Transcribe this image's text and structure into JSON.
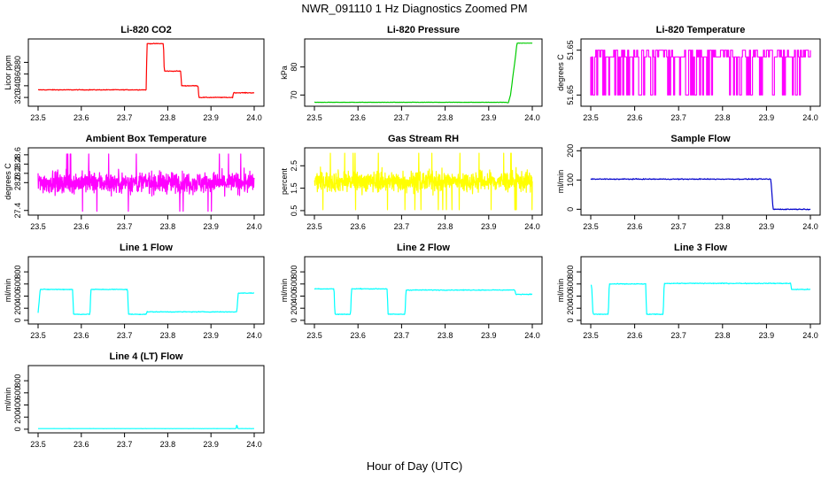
{
  "figure": {
    "title": "NWR_091110  1 Hz Diagnostics Zoomed PM",
    "xlabel": "Hour of Day (UTC)"
  },
  "chart_data": [
    {
      "type": "line",
      "title": "Li-820 CO2",
      "ylabel": "Licor ppm",
      "color": "#ff0000",
      "xlim": [
        23.5,
        24.0
      ],
      "ylim": [
        305,
        420
      ],
      "xticks": [
        "23.5",
        "23.6",
        "23.7",
        "23.8",
        "23.9",
        "24.0"
      ],
      "yticks": [
        {
          "v": 320,
          "label": "320"
        },
        {
          "v": 340,
          "label": "340"
        },
        {
          "v": 360,
          "label": "360"
        },
        {
          "v": 380,
          "label": "380"
        }
      ],
      "noise": 0.6,
      "x": [
        23.5,
        23.75,
        23.752,
        23.79,
        23.792,
        23.83,
        23.832,
        23.87,
        23.872,
        23.95,
        23.952,
        24.0
      ],
      "y": [
        333,
        333,
        412,
        412,
        365,
        365,
        340,
        340,
        320,
        320,
        328,
        328
      ]
    },
    {
      "type": "line",
      "title": "Li-820 Pressure",
      "ylabel": "kPa",
      "color": "#00cc00",
      "xlim": [
        23.5,
        24.0
      ],
      "ylim": [
        66,
        90
      ],
      "xticks": [
        "23.5",
        "23.6",
        "23.7",
        "23.8",
        "23.9",
        "24.0"
      ],
      "yticks": [
        {
          "v": 70,
          "label": "70"
        },
        {
          "v": 80,
          "label": "80"
        }
      ],
      "noise": 0.05,
      "x": [
        23.5,
        23.94,
        23.945,
        23.95,
        23.955,
        23.96,
        23.965,
        24.0
      ],
      "y": [
        67.4,
        67.4,
        67.2,
        70,
        76,
        82,
        88.5,
        88.5
      ]
    },
    {
      "type": "step-noise",
      "title": "Li-820 Temperature",
      "ylabel": "degrees C",
      "color": "#ff00ff",
      "xlim": [
        23.5,
        24.0
      ],
      "ylim": [
        51.6495,
        51.6525
      ],
      "xticks": [
        "23.5",
        "23.6",
        "23.7",
        "23.8",
        "23.9",
        "24.0"
      ],
      "yticks": [
        {
          "v": 51.65,
          "label": "51.65"
        },
        {
          "v": 51.652,
          "label": "51.65"
        }
      ],
      "levels": [
        51.65,
        51.652,
        51.6517
      ],
      "x": [
        23.5,
        24.0
      ],
      "y": [
        51.6517,
        51.6517
      ]
    },
    {
      "type": "noise",
      "title": "Ambient Box Temperature",
      "ylabel": "degrees C",
      "color": "#ff00ff",
      "xlim": [
        23.5,
        24.0
      ],
      "ylim": [
        27.3,
        28.75
      ],
      "xticks": [
        "23.5",
        "23.6",
        "23.7",
        "23.8",
        "23.9",
        "24.0"
      ],
      "yticks": [
        {
          "v": 27.4,
          "label": "27.4"
        },
        {
          "v": 28.0,
          "label": "28.0"
        },
        {
          "v": 28.2,
          "label": "28.2"
        },
        {
          "v": 28.4,
          "label": "28.4"
        },
        {
          "v": 28.6,
          "label": "28.6"
        }
      ],
      "mean": 28.0,
      "spread": 0.22,
      "x": [
        23.5,
        24.0
      ],
      "y": [
        28.0,
        28.0
      ]
    },
    {
      "type": "noise",
      "title": "Gas Stream RH",
      "ylabel": "percent",
      "color": "#ffff00",
      "xlim": [
        23.5,
        24.0
      ],
      "ylim": [
        0.3,
        3.3
      ],
      "xticks": [
        "23.5",
        "23.6",
        "23.7",
        "23.8",
        "23.9",
        "24.0"
      ],
      "yticks": [
        {
          "v": 0.5,
          "label": "0.5"
        },
        {
          "v": 1.5,
          "label": "1.5"
        },
        {
          "v": 2.5,
          "label": "2.5"
        }
      ],
      "mean": 1.8,
      "spread": 0.45,
      "x": [
        23.5,
        24.0
      ],
      "y": [
        1.8,
        1.8
      ]
    },
    {
      "type": "line",
      "title": "Sample Flow",
      "ylabel": "ml/min",
      "color": "#0000cc",
      "xlim": [
        23.5,
        24.0
      ],
      "ylim": [
        -20,
        210
      ],
      "xticks": [
        "23.5",
        "23.6",
        "23.7",
        "23.8",
        "23.9",
        "24.0"
      ],
      "yticks": [
        {
          "v": 0,
          "label": "0"
        },
        {
          "v": 100,
          "label": "100"
        },
        {
          "v": 200,
          "label": "200"
        }
      ],
      "noise": 1.5,
      "x": [
        23.5,
        23.91,
        23.915,
        24.0
      ],
      "y": [
        103,
        103,
        0,
        0
      ]
    },
    {
      "type": "line",
      "title": "Line 1 Flow",
      "ylabel": "ml/min",
      "color": "#00ffff",
      "xlim": [
        23.5,
        24.0
      ],
      "ylim": [
        -60,
        1050
      ],
      "xticks": [
        "23.5",
        "23.6",
        "23.7",
        "23.8",
        "23.9",
        "24.0"
      ],
      "yticks": [
        {
          "v": 0,
          "label": "0"
        },
        {
          "v": 200,
          "label": "200"
        },
        {
          "v": 400,
          "label": "400"
        },
        {
          "v": 600,
          "label": "600"
        },
        {
          "v": 800,
          "label": "800"
        }
      ],
      "noise": 6,
      "x": [
        23.5,
        23.505,
        23.58,
        23.582,
        23.62,
        23.622,
        23.707,
        23.709,
        23.75,
        23.752,
        23.96,
        23.963,
        24.0
      ],
      "y": [
        130,
        510,
        510,
        100,
        100,
        510,
        510,
        100,
        100,
        140,
        140,
        450,
        450
      ]
    },
    {
      "type": "line",
      "title": "Line 2 Flow",
      "ylabel": "ml/min",
      "color": "#00ffff",
      "xlim": [
        23.5,
        24.0
      ],
      "ylim": [
        -60,
        1050
      ],
      "xticks": [
        "23.5",
        "23.6",
        "23.7",
        "23.8",
        "23.9",
        "24.0"
      ],
      "yticks": [
        {
          "v": 0,
          "label": "0"
        },
        {
          "v": 200,
          "label": "200"
        },
        {
          "v": 400,
          "label": "400"
        },
        {
          "v": 600,
          "label": "600"
        },
        {
          "v": 800,
          "label": "800"
        }
      ],
      "noise": 6,
      "x": [
        23.5,
        23.545,
        23.547,
        23.583,
        23.585,
        23.667,
        23.669,
        23.708,
        23.71,
        23.96,
        23.962,
        24.0
      ],
      "y": [
        520,
        520,
        100,
        100,
        520,
        520,
        100,
        100,
        500,
        500,
        430,
        430
      ]
    },
    {
      "type": "line",
      "title": "Line 3 Flow",
      "ylabel": "ml/min",
      "color": "#00ffff",
      "xlim": [
        23.5,
        24.0
      ],
      "ylim": [
        -60,
        1050
      ],
      "xticks": [
        "23.5",
        "23.6",
        "23.7",
        "23.8",
        "23.9",
        "24.0"
      ],
      "yticks": [
        {
          "v": 0,
          "label": "0"
        },
        {
          "v": 200,
          "label": "200"
        },
        {
          "v": 400,
          "label": "400"
        },
        {
          "v": 600,
          "label": "600"
        },
        {
          "v": 800,
          "label": "800"
        }
      ],
      "noise": 7,
      "x": [
        23.5,
        23.502,
        23.505,
        23.54,
        23.542,
        23.625,
        23.627,
        23.665,
        23.667,
        23.955,
        23.957,
        24.0
      ],
      "y": [
        580,
        580,
        100,
        100,
        600,
        600,
        100,
        100,
        610,
        610,
        510,
        510
      ]
    },
    {
      "type": "line",
      "title": "Line 4 (LT) Flow",
      "ylabel": "ml/min",
      "color": "#00ffff",
      "xlim": [
        23.5,
        24.0
      ],
      "ylim": [
        -60,
        1050
      ],
      "xticks": [
        "23.5",
        "23.6",
        "23.7",
        "23.8",
        "23.9",
        "24.0"
      ],
      "yticks": [
        {
          "v": 0,
          "label": "0"
        },
        {
          "v": 200,
          "label": "200"
        },
        {
          "v": 400,
          "label": "400"
        },
        {
          "v": 600,
          "label": "600"
        },
        {
          "v": 800,
          "label": "800"
        }
      ],
      "noise": 1,
      "x": [
        23.5,
        23.958,
        23.96,
        23.962,
        23.966,
        24.0
      ],
      "y": [
        10,
        10,
        80,
        10,
        10,
        10
      ]
    }
  ]
}
